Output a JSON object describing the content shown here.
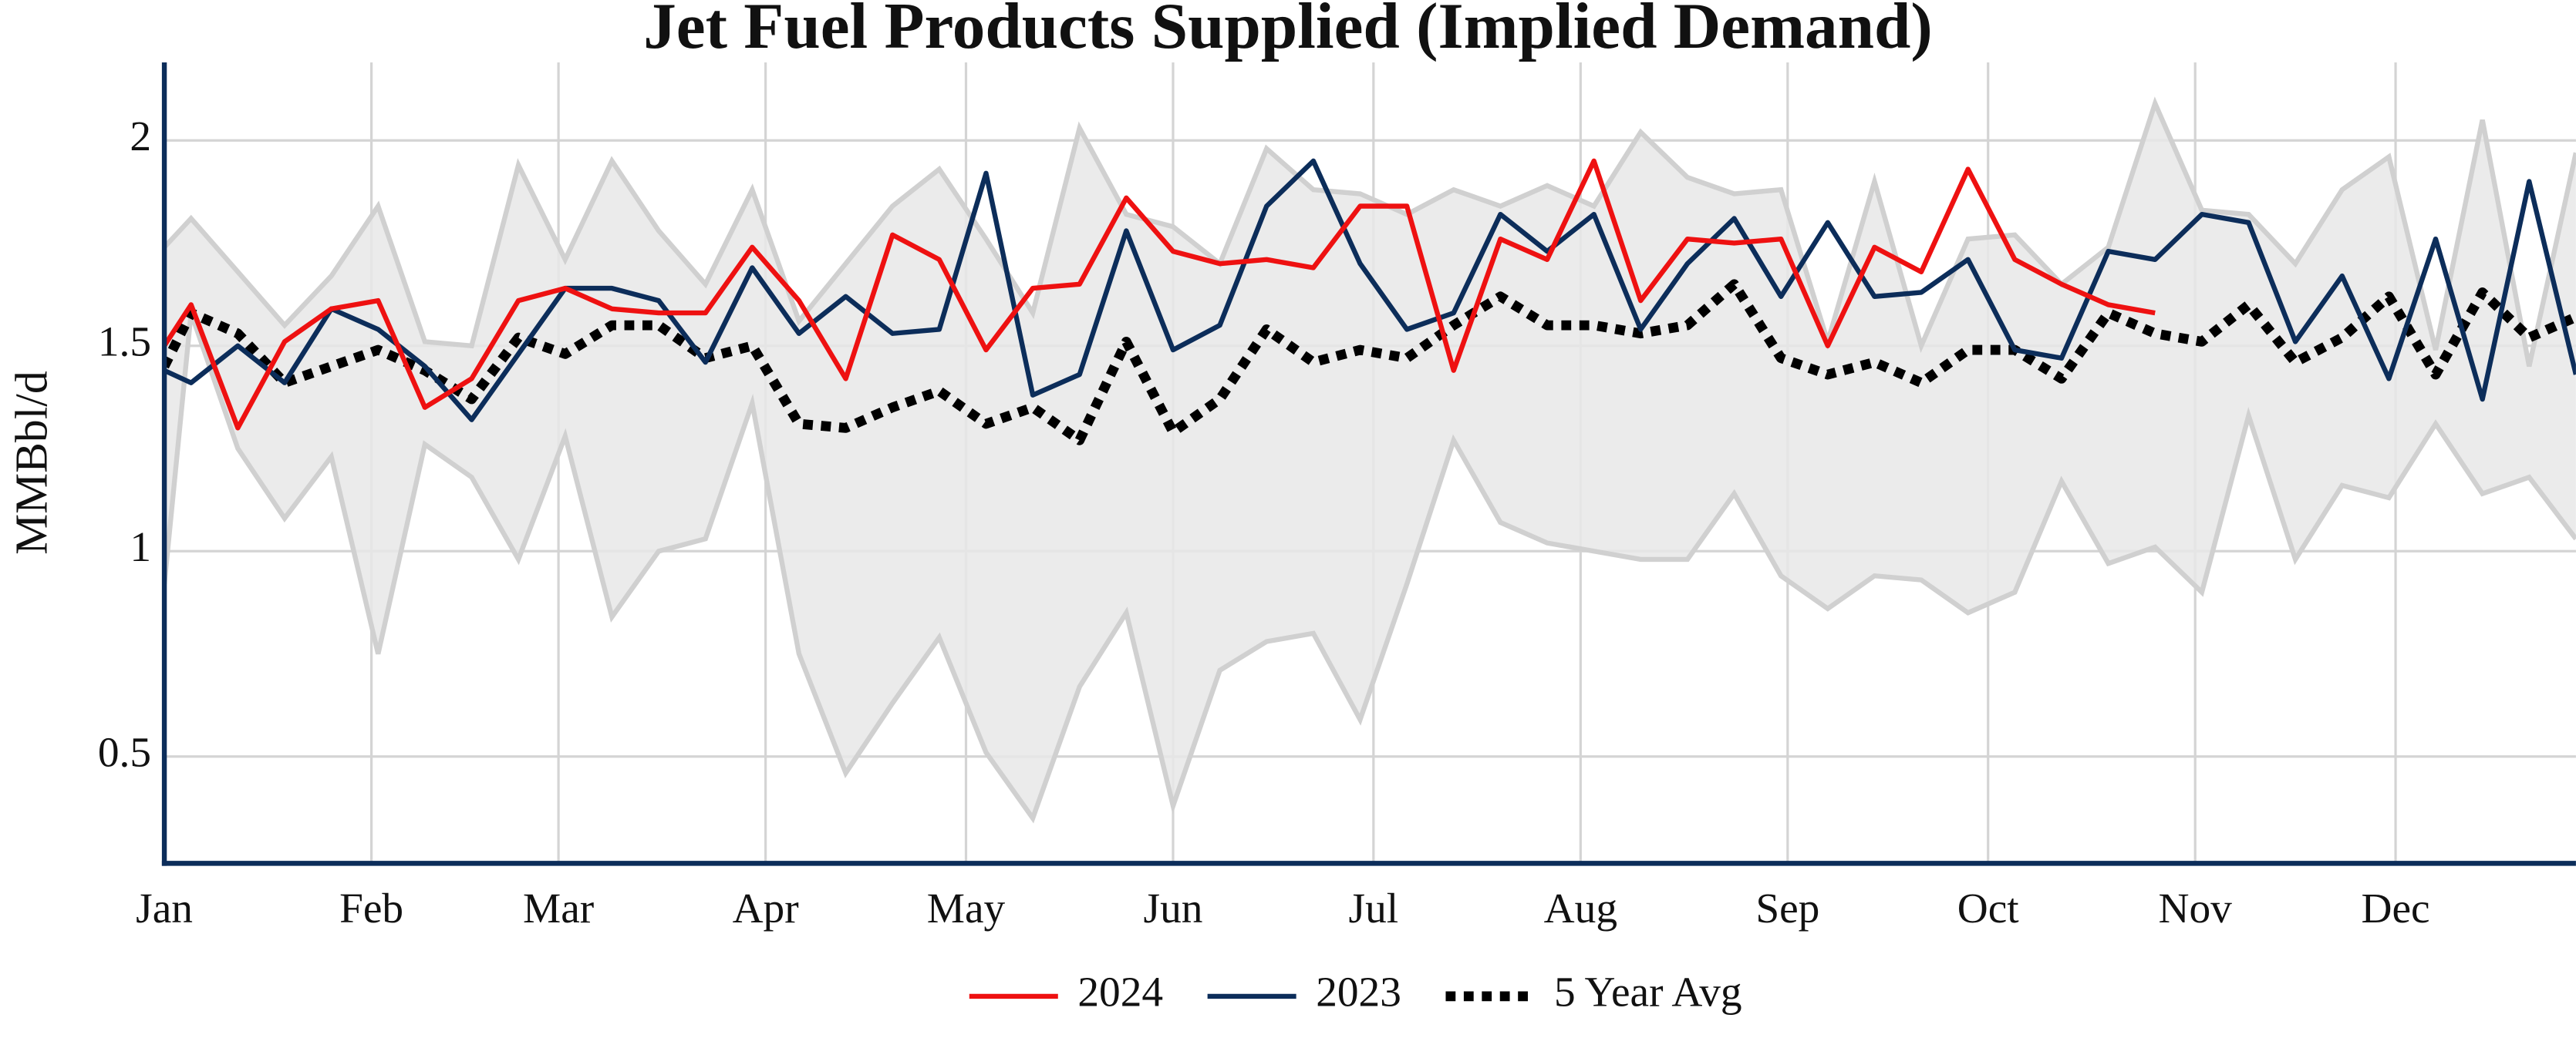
{
  "chart_data": {
    "type": "line",
    "title": "Jet Fuel Products Supplied (Implied Demand)",
    "y_label": "MMBbl/d",
    "x": [
      1,
      5,
      12,
      19,
      26,
      33,
      40,
      47,
      54,
      61,
      68,
      75,
      82,
      89,
      96,
      103,
      110,
      117,
      124,
      131,
      138,
      145,
      152,
      159,
      166,
      173,
      180,
      187,
      194,
      201,
      208,
      215,
      222,
      229,
      236,
      243,
      250,
      257,
      264,
      271,
      278,
      285,
      292,
      299,
      306,
      313,
      320,
      327,
      334,
      341,
      348,
      355,
      362
    ],
    "xlim": [
      1,
      362
    ],
    "xticks": [
      {
        "value": 1,
        "label": "Jan"
      },
      {
        "value": 32,
        "label": "Feb"
      },
      {
        "value": 60,
        "label": "Mar"
      },
      {
        "value": 91,
        "label": "Apr"
      },
      {
        "value": 121,
        "label": "May"
      },
      {
        "value": 152,
        "label": "Jun"
      },
      {
        "value": 182,
        "label": "Jul"
      },
      {
        "value": 213,
        "label": "Aug"
      },
      {
        "value": 244,
        "label": "Sep"
      },
      {
        "value": 274,
        "label": "Oct"
      },
      {
        "value": 305,
        "label": "Nov"
      },
      {
        "value": 335,
        "label": "Dec"
      }
    ],
    "ylim": [
      0.24,
      2.19
    ],
    "yticks": [
      0.5,
      1,
      1.5,
      2
    ],
    "grid": true,
    "band": {
      "color": "#e8e8e8",
      "edge_color": "#d0d0d0",
      "upper": [
        1.74,
        1.81,
        1.68,
        1.55,
        1.67,
        1.84,
        1.51,
        1.5,
        1.94,
        1.71,
        1.95,
        1.78,
        1.65,
        1.88,
        1.56,
        1.7,
        1.84,
        1.93,
        1.76,
        1.58,
        2.03,
        1.82,
        1.79,
        1.7,
        1.98,
        1.88,
        1.87,
        1.82,
        1.88,
        1.84,
        1.89,
        1.84,
        2.02,
        1.91,
        1.87,
        1.88,
        1.51,
        1.9,
        1.5,
        1.76,
        1.77,
        1.65,
        1.74,
        2.09,
        1.83,
        1.82,
        1.7,
        1.88,
        1.96,
        1.49,
        2.05,
        1.45,
        1.97
      ],
      "lower": [
        0.92,
        1.58,
        1.25,
        1.08,
        1.23,
        0.75,
        1.26,
        1.18,
        0.98,
        1.28,
        0.84,
        1.0,
        1.03,
        1.36,
        0.75,
        0.46,
        0.63,
        0.79,
        0.51,
        0.35,
        0.67,
        0.85,
        0.38,
        0.71,
        0.78,
        0.8,
        0.59,
        0.92,
        1.27,
        1.07,
        1.02,
        1.0,
        0.98,
        0.98,
        1.14,
        0.94,
        0.86,
        0.94,
        0.93,
        0.85,
        0.9,
        1.17,
        0.97,
        1.01,
        0.9,
        1.33,
        0.98,
        1.16,
        1.13,
        1.31,
        1.14,
        1.18,
        1.03
      ]
    },
    "series": [
      {
        "name": "2024",
        "color": "#ee1111",
        "style": "solid",
        "values": [
          1.5,
          1.6,
          1.3,
          1.51,
          1.59,
          1.61,
          1.35,
          1.42,
          1.61,
          1.64,
          1.59,
          1.58,
          1.58,
          1.74,
          1.61,
          1.42,
          1.77,
          1.71,
          1.49,
          1.64,
          1.65,
          1.86,
          1.73,
          1.7,
          1.71,
          1.69,
          1.84,
          1.84,
          1.44,
          1.76,
          1.71,
          1.95,
          1.61,
          1.76,
          1.75,
          1.76,
          1.5,
          1.74,
          1.68,
          1.93,
          1.71,
          1.65,
          1.6,
          1.58,
          null,
          null,
          null,
          null,
          null,
          null,
          null,
          null,
          null
        ]
      },
      {
        "name": "2023",
        "color": "#0c2d5a",
        "style": "solid",
        "values": [
          1.44,
          1.41,
          1.5,
          1.41,
          1.59,
          1.54,
          1.45,
          1.32,
          1.48,
          1.64,
          1.64,
          1.61,
          1.46,
          1.69,
          1.53,
          1.62,
          1.53,
          1.54,
          1.92,
          1.38,
          1.43,
          1.78,
          1.49,
          1.55,
          1.84,
          1.95,
          1.7,
          1.54,
          1.58,
          1.82,
          1.73,
          1.82,
          1.54,
          1.7,
          1.81,
          1.62,
          1.8,
          1.62,
          1.63,
          1.71,
          1.49,
          1.47,
          1.73,
          1.71,
          1.82,
          1.8,
          1.51,
          1.67,
          1.42,
          1.76,
          1.37,
          1.9,
          1.43
        ]
      },
      {
        "name": "5 Year Avg",
        "color": "#000000",
        "style": "dotted",
        "values": [
          1.45,
          1.58,
          1.53,
          1.41,
          1.45,
          1.49,
          1.44,
          1.37,
          1.52,
          1.48,
          1.55,
          1.55,
          1.47,
          1.5,
          1.31,
          1.3,
          1.35,
          1.39,
          1.31,
          1.35,
          1.27,
          1.51,
          1.29,
          1.37,
          1.54,
          1.46,
          1.49,
          1.47,
          1.55,
          1.62,
          1.55,
          1.55,
          1.53,
          1.55,
          1.65,
          1.47,
          1.43,
          1.46,
          1.41,
          1.49,
          1.49,
          1.42,
          1.58,
          1.53,
          1.51,
          1.6,
          1.46,
          1.52,
          1.62,
          1.43,
          1.63,
          1.52,
          1.57
        ]
      }
    ],
    "axis_color": "#0c2d5a"
  }
}
